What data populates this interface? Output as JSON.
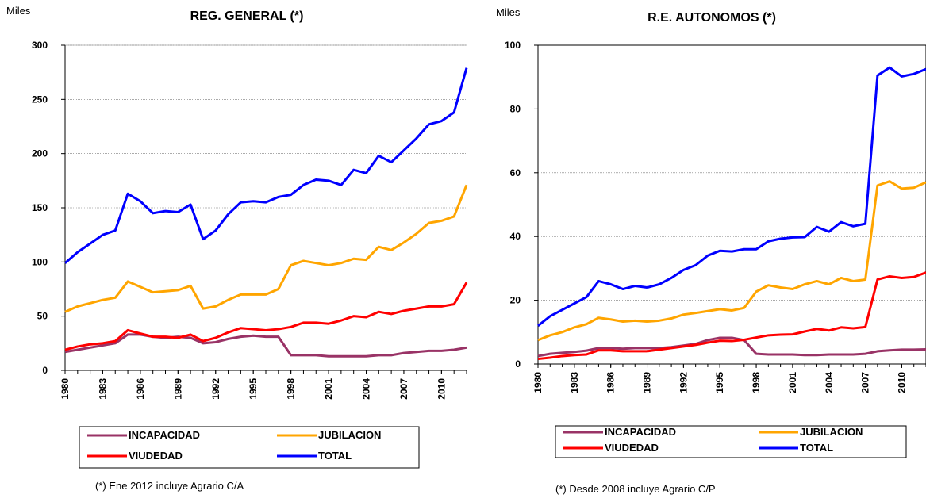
{
  "chart_data": [
    {
      "type": "line",
      "title": "REG. GENERAL (*)",
      "y_label": "Miles",
      "note": "(*) Ene 2012 incluye Agrario C/A",
      "x": [
        1980,
        1981,
        1982,
        1983,
        1984,
        1985,
        1986,
        1987,
        1988,
        1989,
        1990,
        1991,
        1992,
        1993,
        1994,
        1995,
        1996,
        1997,
        1998,
        1999,
        2000,
        2001,
        2002,
        2003,
        2004,
        2005,
        2006,
        2007,
        2008,
        2009,
        2010,
        2011,
        2012
      ],
      "xlim": [
        1980,
        2012
      ],
      "xticks": [
        1980,
        1983,
        1986,
        1989,
        1992,
        1995,
        1998,
        2001,
        2004,
        2007,
        2010
      ],
      "ylim": [
        0,
        300
      ],
      "yticks": [
        0,
        50,
        100,
        150,
        200,
        250,
        300
      ],
      "grid": true,
      "series": [
        {
          "name": "INCAPACIDAD",
          "color": "#993366",
          "values": [
            17,
            19,
            21,
            23,
            25,
            33,
            33,
            31,
            30,
            31,
            30,
            25,
            26,
            29,
            31,
            32,
            31,
            31,
            14,
            14,
            14,
            13,
            13,
            13,
            13,
            14,
            14,
            16,
            17,
            18,
            18,
            19,
            21
          ]
        },
        {
          "name": "JUBILACION",
          "color": "#ffa500",
          "values": [
            54,
            59,
            62,
            65,
            67,
            82,
            77,
            72,
            73,
            74,
            78,
            57,
            59,
            65,
            70,
            70,
            70,
            75,
            97,
            101,
            99,
            97,
            99,
            103,
            102,
            114,
            111,
            118,
            126,
            136,
            138,
            142,
            171
          ]
        },
        {
          "name": "VIUDEDAD",
          "color": "#ff0000",
          "values": [
            19,
            22,
            24,
            25,
            27,
            37,
            34,
            31,
            31,
            30,
            33,
            27,
            30,
            35,
            39,
            38,
            37,
            38,
            40,
            44,
            44,
            43,
            46,
            50,
            49,
            54,
            52,
            55,
            57,
            59,
            59,
            61,
            81
          ]
        },
        {
          "name": "TOTAL",
          "color": "#0000ff",
          "values": [
            99,
            109,
            117,
            125,
            129,
            163,
            156,
            145,
            147,
            146,
            153,
            121,
            129,
            144,
            155,
            156,
            155,
            160,
            162,
            171,
            176,
            175,
            171,
            185,
            182,
            198,
            192,
            203,
            214,
            227,
            230,
            238,
            279
          ]
        }
      ]
    },
    {
      "type": "line",
      "title": "R.E. AUTONOMOS (*)",
      "y_label": "Miles",
      "note": "(*) Desde 2008 incluye Agrario C/P",
      "x": [
        1980,
        1981,
        1982,
        1983,
        1984,
        1985,
        1986,
        1987,
        1988,
        1989,
        1990,
        1991,
        1992,
        1993,
        1994,
        1995,
        1996,
        1997,
        1998,
        1999,
        2000,
        2001,
        2002,
        2003,
        2004,
        2005,
        2006,
        2007,
        2008,
        2009,
        2010,
        2011,
        2012
      ],
      "xlim": [
        1980,
        2012
      ],
      "xticks": [
        1980,
        1983,
        1986,
        1989,
        1992,
        1995,
        1998,
        2001,
        2004,
        2007,
        2010
      ],
      "ylim": [
        0,
        100
      ],
      "yticks": [
        0,
        20,
        40,
        60,
        80,
        100
      ],
      "grid": true,
      "series": [
        {
          "name": "INCAPACIDAD",
          "color": "#993366",
          "values": [
            2.5,
            3.2,
            3.5,
            3.8,
            4.2,
            5,
            5,
            4.8,
            5,
            5,
            5,
            5.3,
            5.8,
            6.3,
            7.5,
            8.2,
            8.2,
            7.5,
            3.2,
            3,
            3,
            3,
            2.8,
            2.8,
            3,
            3,
            3,
            3.2,
            4,
            4.3,
            4.5,
            4.5,
            4.6
          ]
        },
        {
          "name": "JUBILACION",
          "color": "#ffa500",
          "values": [
            7.5,
            9,
            10,
            11.5,
            12.5,
            14.5,
            14,
            13.3,
            13.6,
            13.3,
            13.6,
            14.3,
            15.5,
            16,
            16.6,
            17.2,
            16.8,
            17.6,
            22.7,
            24.7,
            24,
            23.5,
            25,
            26,
            25,
            27,
            26,
            26.5,
            56,
            57.3,
            55,
            55.3,
            57
          ]
        },
        {
          "name": "VIUDEDAD",
          "color": "#ff0000",
          "values": [
            1.6,
            2,
            2.5,
            2.8,
            3,
            4.3,
            4.3,
            4,
            4,
            4,
            4.5,
            5,
            5.5,
            6,
            6.7,
            7.3,
            7.2,
            7.6,
            8.3,
            9,
            9.2,
            9.3,
            10.2,
            11,
            10.5,
            11.5,
            11.2,
            11.6,
            26.5,
            27.5,
            27,
            27.3,
            28.7
          ]
        },
        {
          "name": "TOTAL",
          "color": "#0000ff",
          "values": [
            12,
            15,
            17,
            19,
            21,
            26,
            25,
            23.5,
            24.5,
            24,
            25,
            27,
            29.5,
            31,
            34,
            35.5,
            35.3,
            36,
            36,
            38.5,
            39.3,
            39.7,
            39.8,
            43,
            41.5,
            44.5,
            43.2,
            44,
            90.5,
            93,
            90.2,
            91,
            92.5
          ]
        }
      ]
    }
  ]
}
